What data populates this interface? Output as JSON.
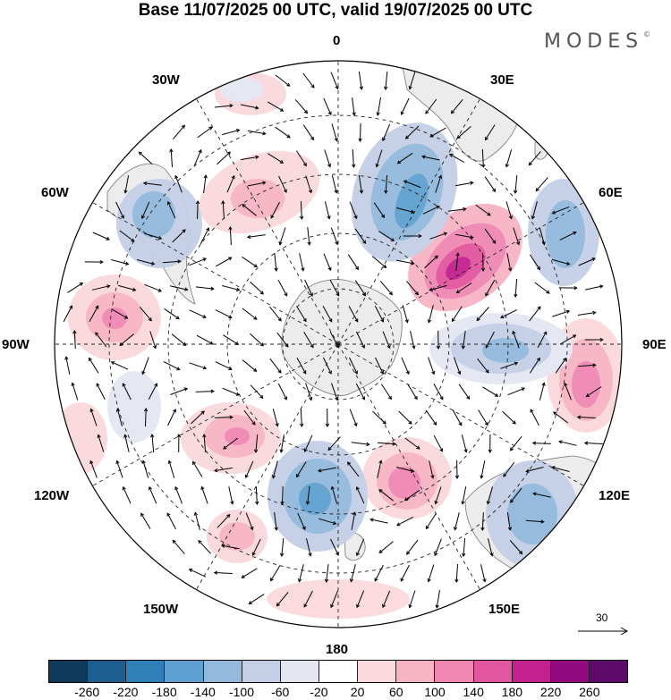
{
  "title": "Base 11/07/2025 00 UTC, valid 19/07/2025 00 UTC",
  "logo": "MODES",
  "logo_mark": "©",
  "longitude_labels": {
    "lon_0": "0",
    "lon_30e": "30E",
    "lon_60e": "60E",
    "lon_90e": "90E",
    "lon_120e": "120E",
    "lon_150e": "150E",
    "lon_180": "180",
    "lon_150w": "150W",
    "lon_120w": "120W",
    "lon_90w": "90W",
    "lon_60w": "60W",
    "lon_30w": "30W"
  },
  "reference_vector": "30",
  "colorbar": {
    "colors": [
      "#0f3a5c",
      "#1b5e8f",
      "#2f7fb8",
      "#5ea0cf",
      "#93b9dc",
      "#c4cfe6",
      "#e4e6f2",
      "#ffffff",
      "#fbd9dc",
      "#f7b4c4",
      "#f087b3",
      "#e2559f",
      "#c4208f",
      "#92087f",
      "#5e0a6b"
    ],
    "ticks": [
      "-260",
      "-220",
      "-180",
      "-140",
      "-100",
      "-60",
      "-20",
      "20",
      "60",
      "100",
      "140",
      "180",
      "220",
      "260"
    ]
  },
  "map_colors": {
    "land": "#ececec",
    "coast": "#777777",
    "grid": "#222222"
  }
}
